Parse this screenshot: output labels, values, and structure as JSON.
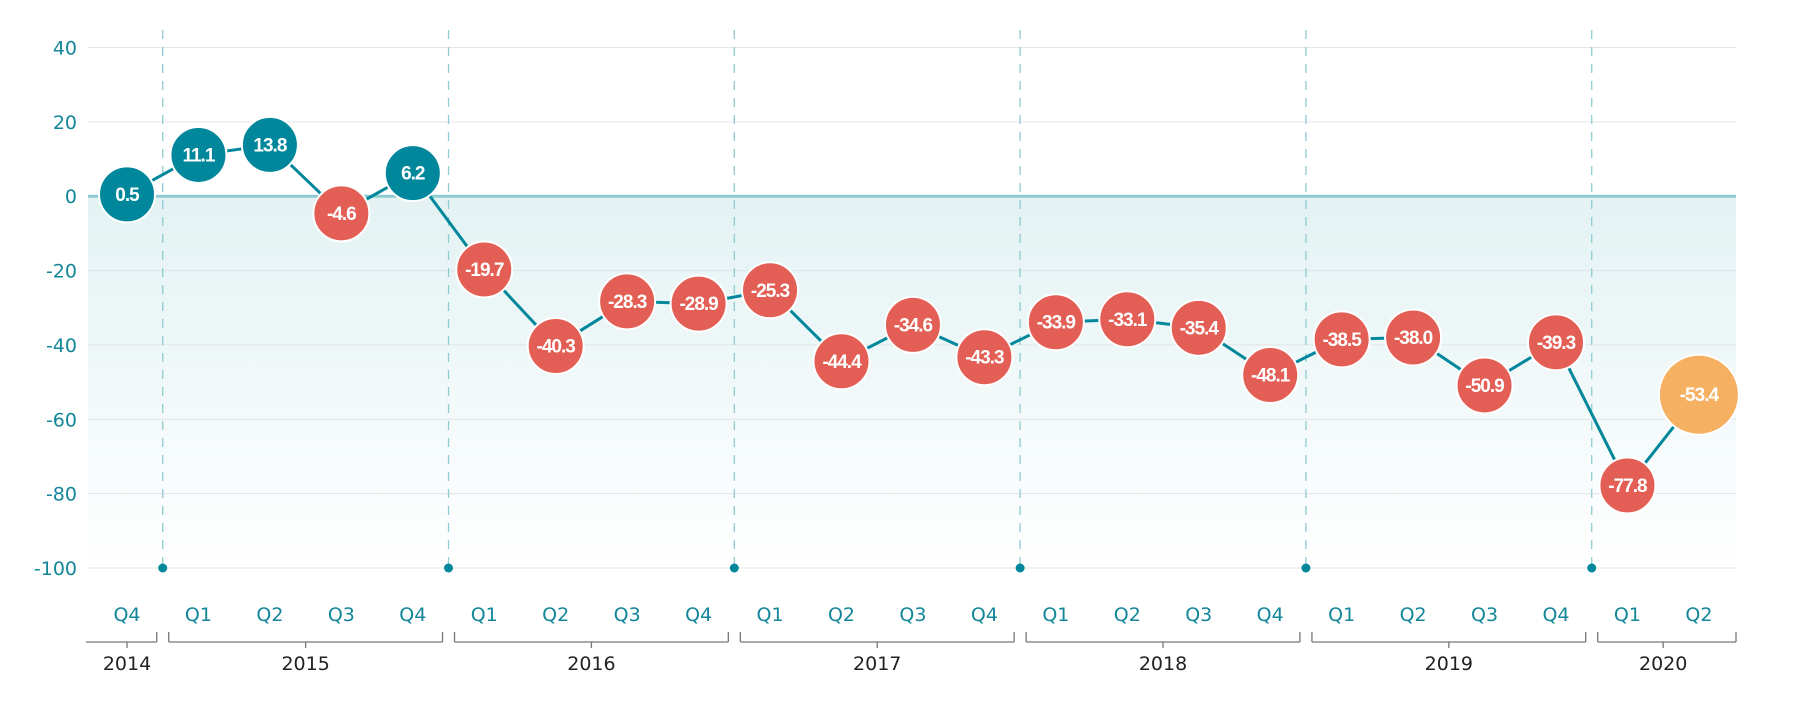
{
  "chart_data": {
    "type": "line",
    "title": "",
    "xlabel": "",
    "ylabel": "",
    "ylim": [
      -100,
      40
    ],
    "yticks": [
      40,
      20,
      0,
      -20,
      -40,
      -60,
      -80,
      -100
    ],
    "grid": true,
    "legend": "none",
    "x": [
      "Q4",
      "Q1",
      "Q2",
      "Q3",
      "Q4",
      "Q1",
      "Q2",
      "Q3",
      "Q4",
      "Q1",
      "Q2",
      "Q3",
      "Q4",
      "Q1",
      "Q2",
      "Q3",
      "Q4",
      "Q1",
      "Q2",
      "Q3",
      "Q4",
      "Q1",
      "Q2"
    ],
    "years": [
      {
        "label": "2014",
        "quarters": 1
      },
      {
        "label": "2015",
        "quarters": 4
      },
      {
        "label": "2016",
        "quarters": 4
      },
      {
        "label": "2017",
        "quarters": 4
      },
      {
        "label": "2018",
        "quarters": 4
      },
      {
        "label": "2019",
        "quarters": 4
      },
      {
        "label": "2020",
        "quarters": 2
      }
    ],
    "values": [
      0.5,
      11.1,
      13.8,
      -4.6,
      6.2,
      -19.7,
      -40.3,
      -28.3,
      -28.9,
      -25.3,
      -44.4,
      -34.6,
      -43.3,
      -33.9,
      -33.1,
      -35.4,
      -48.1,
      -38.5,
      -38.0,
      -50.9,
      -39.3,
      -77.8,
      -53.4
    ],
    "labels": [
      "0.5",
      "11.1",
      "13.8",
      "-4.6",
      "6.2",
      "-19.7",
      "-40.3",
      "-28.3",
      "-28.9",
      "-25.3",
      "-44.4",
      "-34.6",
      "-43.3",
      "-33.9",
      "-33.1",
      "-35.4",
      "-48.1",
      "-38.5",
      "-38.0",
      "-50.9",
      "-39.3",
      "-77.8",
      "-53.4"
    ],
    "highlight_last": true,
    "colors": {
      "positive": "#00879b",
      "negative": "#e35f55",
      "highlight": "#f5b062",
      "line": "#00879b",
      "zero_line": "#8ecbd3",
      "fill": "#e3f2f3",
      "axis_text": "#13869a"
    }
  }
}
